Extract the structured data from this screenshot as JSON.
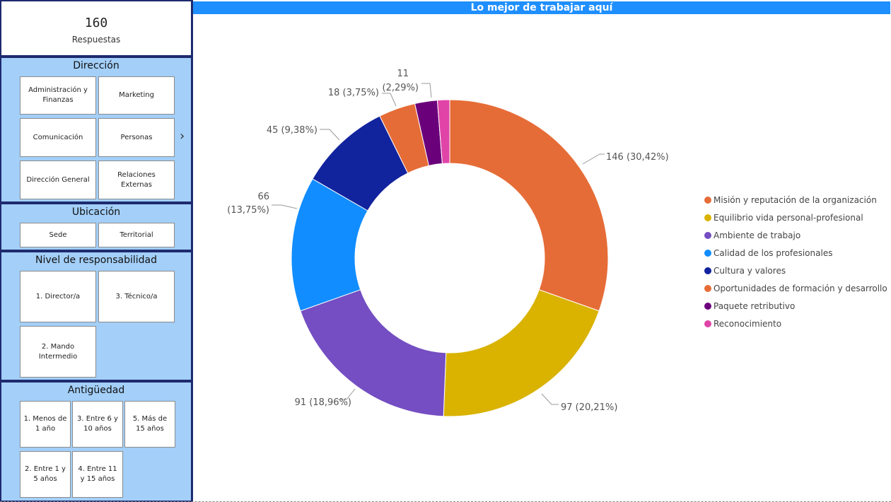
{
  "kpi": {
    "value": "160",
    "label": "Respuestas"
  },
  "filters": {
    "direccion": {
      "title": "Dirección",
      "items": [
        "Administración y Finanzas",
        "Marketing",
        "Comunicación",
        "Personas",
        "Dirección General",
        "Relaciones Externas"
      ]
    },
    "ubicacion": {
      "title": "Ubicación",
      "items": [
        "Sede",
        "Territorial"
      ]
    },
    "nivel": {
      "title": "Nivel de responsabilidad",
      "items": [
        "1. Director/a",
        "3. Técnico/a",
        "2. Mando Intermedio"
      ]
    },
    "antiguedad": {
      "title": "Antigüedad",
      "items": [
        "1. Menos de 1 año",
        "3. Entre 6 y 10 años",
        "5. Más de 15 años",
        "2. Entre 1 y 5 años",
        "4. Entre 11 y 15 años"
      ]
    }
  },
  "icons": {
    "next": "chevron-right-icon"
  },
  "chart_data": {
    "type": "pie",
    "variant": "donut",
    "title": "Lo mejor de trabajar aquí",
    "legend_position": "right",
    "slices": [
      {
        "name": "Misión y reputación de la organización",
        "value": 146,
        "pct": "30,42%",
        "label": "146 (30,42%)",
        "color": "#e66c37"
      },
      {
        "name": "Equilibrio vida personal-profesional",
        "value": 97,
        "pct": "20,21%",
        "label": "97 (20,21%)",
        "color": "#d9b300"
      },
      {
        "name": "Ambiente de trabajo",
        "value": 91,
        "pct": "18,96%",
        "label": "91 (18,96%)",
        "color": "#744ec2"
      },
      {
        "name": "Calidad de los profesionales",
        "value": 66,
        "pct": "13,75%",
        "label": "66 (13,75%)",
        "color": "#118dff"
      },
      {
        "name": "Cultura y valores",
        "value": 45,
        "pct": "9,38%",
        "label": "45 (9,38%)",
        "color": "#12239e"
      },
      {
        "name": "Oportunidades de formación y desarrollo",
        "value": 18,
        "pct": "3,75%",
        "label": "18 (3,75%)",
        "color": "#e66c37"
      },
      {
        "name": "Paquete retributivo",
        "value": 11,
        "pct": "2,29%",
        "label": "11 (2,29%)",
        "color": "#6b007b"
      },
      {
        "name": "Reconocimiento",
        "value": 6,
        "pct": "1,25%",
        "label": "",
        "color": "#e044a7"
      }
    ]
  }
}
